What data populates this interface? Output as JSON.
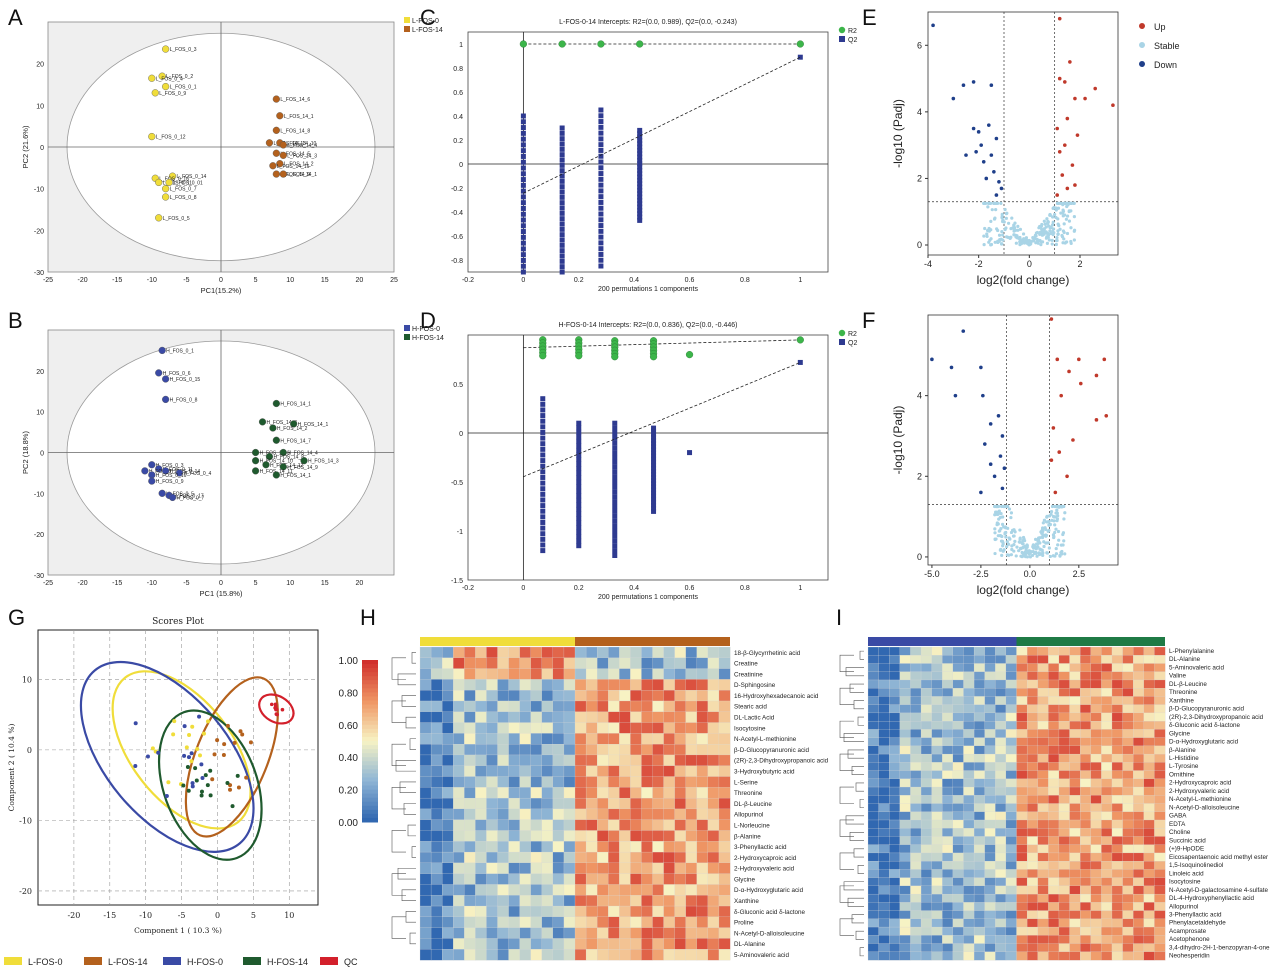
{
  "panel_letters": [
    "A",
    "B",
    "C",
    "D",
    "E",
    "F",
    "G",
    "H",
    "I"
  ],
  "chart_data": [
    {
      "id": "A",
      "type": "scatter",
      "xlabel": "PC1(15.2%)",
      "ylabel": "PC2 (21.6%)",
      "xlim": [
        -25,
        25
      ],
      "ylim": [
        -30,
        30
      ],
      "xticks": [
        "-25",
        "-20",
        "-15",
        "-10",
        "-5",
        "0",
        "5",
        "10",
        "15",
        "20",
        "25"
      ],
      "yticks": [
        "-30",
        "-20",
        "-10",
        "0",
        "10",
        "20"
      ],
      "legend": [
        "L-FOS-0",
        "L-FOS-14"
      ],
      "colors": [
        "#f0dd3a",
        "#b4611d"
      ],
      "series": [
        {
          "name": "L-FOS-0",
          "points": [
            [
              -8,
              23.5,
              "L_FOS_0_3"
            ],
            [
              -8.5,
              17,
              "L_FOS_0_2"
            ],
            [
              -10,
              16.5,
              "L_FOS_0_4"
            ],
            [
              -8,
              14.5,
              "L_FOS_0_1"
            ],
            [
              -9.5,
              13,
              "L_FOS_0_9"
            ],
            [
              -10,
              2.5,
              "L_FOS_0_12"
            ],
            [
              -7,
              -7,
              "L_FOS_0_14"
            ],
            [
              -9.5,
              -7.5,
              "L_FOS_0_16"
            ],
            [
              -9,
              -8.5,
              "L_FOS_0_11"
            ],
            [
              -7.5,
              -8.5,
              "L_FOS_0_01"
            ],
            [
              -8,
              -10,
              "L_FOS_0_7"
            ],
            [
              -8,
              -12,
              "L_FOS_0_8"
            ],
            [
              -9,
              -17,
              "L_FOS_0_5"
            ]
          ]
        },
        {
          "name": "L-FOS-14",
          "points": [
            [
              8,
              11.5,
              "L_FOS_14_6"
            ],
            [
              8.5,
              7.5,
              "L_FOS_14_1"
            ],
            [
              8,
              4,
              "L_FOS_14_8"
            ],
            [
              7,
              1,
              "L_FOS_14_13"
            ],
            [
              8.5,
              1,
              "L_FOS_14_10"
            ],
            [
              9,
              0.5,
              "L_FOS_14_4"
            ],
            [
              8,
              -1.5,
              "L_FOS_14_5"
            ],
            [
              9,
              -2,
              "L_FOS_14_3"
            ],
            [
              8.5,
              -4,
              "L_FOS_14_2"
            ],
            [
              7.5,
              -4.5,
              "L_FOS_14_16"
            ],
            [
              8,
              -6.5,
              "L_FOS_14_9"
            ],
            [
              9,
              -6.5,
              "L_FOS_14_1"
            ]
          ]
        }
      ]
    },
    {
      "id": "B",
      "type": "scatter",
      "xlabel": "PC1 (15.8%)",
      "ylabel": "PC2 (18.8%)",
      "xlim": [
        -25,
        25
      ],
      "ylim": [
        -30,
        30
      ],
      "xticks": [
        "-25",
        "-20",
        "-15",
        "-10",
        "-5",
        "0",
        "5",
        "10",
        "15",
        "20"
      ],
      "yticks": [
        "-30",
        "-20",
        "-10",
        "0",
        "10",
        "20"
      ],
      "legend": [
        "H-FOS-0",
        "H-FOS-14"
      ],
      "colors": [
        "#3a4aa5",
        "#1f5a2e"
      ],
      "series": [
        {
          "name": "H-FOS-0",
          "points": [
            [
              -8.5,
              25,
              "H_FOS_0_1"
            ],
            [
              -9,
              19.5,
              "H_FOS_0_6"
            ],
            [
              -8,
              18,
              "H_FOS_0_15"
            ],
            [
              -8,
              13,
              "H_FOS_0_8"
            ],
            [
              -10,
              -3,
              "H_FOS_0_3"
            ],
            [
              -9,
              -4,
              "H_FOS_0_11"
            ],
            [
              -11,
              -4.5,
              "H_FOS_0_12"
            ],
            [
              -8,
              -4.5,
              "H_FOS_0_14"
            ],
            [
              -6,
              -5,
              "H_FOS_0_4"
            ],
            [
              -10,
              -5.5,
              "H_FOS_0_16"
            ],
            [
              -10,
              -7,
              "H_FOS_0_9"
            ],
            [
              -8.5,
              -10,
              "H_FOS_0_5"
            ],
            [
              -7.5,
              -10.5,
              "H_FOS_0_17"
            ],
            [
              -7,
              -11,
              "H_FOS_0_7"
            ]
          ]
        },
        {
          "name": "H-FOS-14",
          "points": [
            [
              8,
              12,
              "H_FOS_14_1"
            ],
            [
              6,
              7.5,
              "H_FOS_14_3"
            ],
            [
              10.5,
              7,
              "H_FOS_14_1"
            ],
            [
              7.5,
              6,
              "H_FOS_14_2"
            ],
            [
              8,
              3,
              "H_FOS_14_7"
            ],
            [
              5,
              0,
              "H_FOS_14_6"
            ],
            [
              9,
              0,
              "H_FOS_14_4"
            ],
            [
              7,
              -1,
              "H_FOS_14_8"
            ],
            [
              5,
              -2,
              "H_FOS_14_10"
            ],
            [
              12,
              -2,
              "H_FOS_14_3"
            ],
            [
              6.5,
              -3,
              "H_FOS_14_12"
            ],
            [
              9,
              -3.5,
              "H_FOS_14_9"
            ],
            [
              5,
              -4.5,
              "H_FOS_14_11"
            ],
            [
              8,
              -5.5,
              "H_FOS_14_1"
            ]
          ]
        }
      ]
    },
    {
      "id": "C",
      "type": "scatter",
      "title": "L-FOS-0-14 Intercepts: R2=(0.0, 0.989), Q2=(0.0, -0.243)",
      "xlabel": "200 permutations 1 components",
      "xlim": [
        -0.2,
        1.1
      ],
      "ylim": [
        -0.9,
        1.1
      ],
      "xticks": [
        "-0.2",
        "0",
        "0.2",
        "0.4",
        "0.6",
        "0.8",
        "1"
      ],
      "yticks": [
        "-0.8",
        "-0.6",
        "-0.4",
        "-0.2",
        "0",
        "0.2",
        "0.4",
        "0.6",
        "0.8",
        "1"
      ],
      "legend": [
        "R2",
        "Q2"
      ],
      "colors": [
        "#3cb54a",
        "#2e3a90"
      ],
      "R2": {
        "x": [
          0,
          0.14,
          0.28,
          0.42,
          1
        ],
        "y": [
          1,
          1,
          1,
          1,
          1
        ]
      },
      "Q2_columns": [
        {
          "x": 0,
          "ymin": -0.9,
          "ymax": 0.4
        },
        {
          "x": 0.14,
          "ymin": -0.9,
          "ymax": 0.3
        },
        {
          "x": 0.28,
          "ymin": -0.85,
          "ymax": 0.45
        },
        {
          "x": 0.42,
          "ymin": -0.47,
          "ymax": 0.28
        }
      ],
      "Q2_point": {
        "x": 1,
        "y": 0.89
      },
      "Q2_intercept": -0.243
    },
    {
      "id": "D",
      "type": "scatter",
      "title": "H-FOS-0-14 Intercepts: R2=(0.0, 0.836), Q2=(0.0, -0.446)",
      "xlabel": "200 permutations 1 components",
      "xlim": [
        -0.2,
        1.1
      ],
      "ylim": [
        -1.5,
        1
      ],
      "xticks": [
        "-0.2",
        "0",
        "0.2",
        "0.4",
        "0.6",
        "0.8",
        "1"
      ],
      "yticks": [
        "-1.5",
        "-1",
        "-0.5",
        "0",
        "0.5"
      ],
      "legend": [
        "R2",
        "Q2"
      ],
      "colors": [
        "#3cb54a",
        "#2e3a90"
      ],
      "R2": {
        "x": [
          0.07,
          0.2,
          0.33,
          0.47,
          0.6,
          1
        ],
        "y": [
          0.87,
          0.87,
          0.86,
          0.86,
          0.8,
          0.95
        ]
      },
      "Q2_columns": [
        {
          "x": 0.07,
          "ymin": -1.2,
          "ymax": 0.35
        },
        {
          "x": 0.2,
          "ymin": -1.15,
          "ymax": 0.1
        },
        {
          "x": 0.33,
          "ymin": -1.25,
          "ymax": 0.1
        },
        {
          "x": 0.47,
          "ymin": -0.8,
          "ymax": 0.05
        }
      ],
      "Q2_extra": [
        {
          "x": 0.6,
          "y": -0.2
        }
      ],
      "Q2_point": {
        "x": 1,
        "y": 0.72
      },
      "Q2_intercept": -0.446
    },
    {
      "id": "E",
      "type": "scatter",
      "xlabel": "log2(fold change)",
      "ylabel": "-log10 (Padj)",
      "xlim": [
        -4,
        3.5
      ],
      "ylim": [
        -0.3,
        7
      ],
      "xticks": [
        "-4",
        "-2",
        "0",
        "2"
      ],
      "yticks": [
        "0",
        "2",
        "4",
        "6"
      ],
      "legend": [
        "Up",
        "Stable",
        "Down"
      ],
      "colors": [
        "#c0392b",
        "#a9d4e6",
        "#1f3f8a"
      ],
      "thresholds": {
        "x": [
          -1,
          1
        ],
        "y": 1.3
      },
      "down": [
        [
          -3.8,
          6.6
        ],
        [
          -2.6,
          4.8
        ],
        [
          -2.2,
          4.9
        ],
        [
          -3,
          4.4
        ],
        [
          -1.5,
          4.8
        ],
        [
          -2.2,
          3.5
        ],
        [
          -2,
          3.4
        ],
        [
          -1.6,
          3.6
        ],
        [
          -2.5,
          2.7
        ],
        [
          -1.9,
          3.0
        ],
        [
          -1.3,
          3.2
        ],
        [
          -1.8,
          2.5
        ],
        [
          -1.4,
          2.2
        ],
        [
          -1.7,
          2.0
        ],
        [
          -1.2,
          1.9
        ],
        [
          -1.1,
          1.7
        ],
        [
          -1.3,
          1.5
        ],
        [
          -2.1,
          2.8
        ],
        [
          -1.5,
          2.7
        ]
      ],
      "up": [
        [
          1.2,
          6.8
        ],
        [
          1.6,
          5.5
        ],
        [
          1.2,
          5.0
        ],
        [
          1.4,
          4.9
        ],
        [
          2.6,
          4.7
        ],
        [
          1.8,
          4.4
        ],
        [
          3.3,
          4.2
        ],
        [
          2.2,
          4.4
        ],
        [
          1.5,
          3.8
        ],
        [
          1.1,
          3.5
        ],
        [
          1.9,
          3.3
        ],
        [
          1.4,
          3.0
        ],
        [
          1.2,
          2.8
        ],
        [
          1.7,
          2.4
        ],
        [
          1.3,
          2.1
        ],
        [
          1.5,
          1.7
        ],
        [
          1.1,
          1.5
        ],
        [
          1.8,
          1.8
        ]
      ]
    },
    {
      "id": "F",
      "type": "scatter",
      "xlabel": "log2(fold change)",
      "ylabel": "-log10 (Padj)",
      "xlim": [
        -5.2,
        4.5
      ],
      "ylim": [
        -0.2,
        6
      ],
      "xticks": [
        "-5.0",
        "-2.5",
        "0.0",
        "2.5"
      ],
      "yticks": [
        "0",
        "2",
        "4"
      ],
      "legend": [],
      "colors": [
        "#c0392b",
        "#a9d4e6",
        "#1f3f8a"
      ],
      "thresholds": {
        "x": [
          -1.2,
          1
        ],
        "y": 1.3
      },
      "down": [
        [
          -3.4,
          5.6
        ],
        [
          -5,
          4.9
        ],
        [
          -4,
          4.7
        ],
        [
          -2.5,
          4.7
        ],
        [
          -3.8,
          4.0
        ],
        [
          -2.4,
          4.0
        ],
        [
          -1.6,
          3.5
        ],
        [
          -2,
          3.3
        ],
        [
          -1.4,
          3.0
        ],
        [
          -2.3,
          2.8
        ],
        [
          -1.5,
          2.5
        ],
        [
          -2,
          2.3
        ],
        [
          -1.3,
          2.2
        ],
        [
          -1.8,
          2.0
        ],
        [
          -1.4,
          1.7
        ],
        [
          -2.5,
          1.6
        ]
      ],
      "up": [
        [
          1.1,
          5.9
        ],
        [
          1.4,
          4.9
        ],
        [
          2.5,
          4.9
        ],
        [
          3.8,
          4.9
        ],
        [
          2,
          4.6
        ],
        [
          2.6,
          4.3
        ],
        [
          3.4,
          4.5
        ],
        [
          1.6,
          4.0
        ],
        [
          3.9,
          3.5
        ],
        [
          3.4,
          3.4
        ],
        [
          1.2,
          3.2
        ],
        [
          2.2,
          2.9
        ],
        [
          1.5,
          2.6
        ],
        [
          1.1,
          2.4
        ],
        [
          1.9,
          2.0
        ],
        [
          1.3,
          1.6
        ]
      ]
    },
    {
      "id": "G",
      "type": "scatter",
      "title": "Scores Plot",
      "xlabel": "Component 1 ( 10.3 %)",
      "ylabel": "Component 2 ( 10.4 %)",
      "xlim": [
        -25,
        14
      ],
      "ylim": [
        -22,
        17
      ],
      "xticks": [
        "-20",
        "-15",
        "-10",
        "-5",
        "0",
        "5",
        "10"
      ],
      "yticks": [
        "-20",
        "-10",
        "0",
        "10"
      ],
      "legend": [
        "L-FOS-0",
        "L-FOS-14",
        "H-FOS-0",
        "H-FOS-14",
        "QC"
      ],
      "colors": [
        "#f0dd3a",
        "#b4611d",
        "#3a4aa5",
        "#1f5a2e",
        "#d3202b"
      ]
    },
    {
      "id": "H",
      "type": "heatmap",
      "colorbar_ticks": [
        "1.00",
        "0.80",
        "0.60",
        "0.40",
        "0.20",
        "0.00"
      ],
      "group_colors": [
        "#f0dd3a",
        "#b4611d"
      ],
      "rows": [
        "18-β-Glycyrrhetinic acid",
        "Creatine",
        "Creatinine",
        "D-Sphingosine",
        "16-Hydroxyhexadecanoic acid",
        "Stearic acid",
        "DL-Lactic Acid",
        "Isocytosine",
        "N-Acetyl-L-methionine",
        "β-D-Glucopyranuronic acid",
        "(2R)-2,3-Dihydroxypropanoic acid",
        "3-Hydroxybutyric acid",
        "L-Serine",
        "Threonine",
        "DL-β-Leucine",
        "Allopurinol",
        "L-Norleucine",
        "β-Alanine",
        "3-Phenyllactic acid",
        "2-Hydroxycaproic acid",
        "2-Hydroxyvaleric acid",
        "Glycine",
        "D-α-Hydroxyglutaric acid",
        "Xanthine",
        "δ-Gluconic acid δ-lactone",
        "Proline",
        "N-Acetyl-D-alloisoleucine",
        "DL-Alanine",
        "5-Aminovaleric acid"
      ]
    },
    {
      "id": "I",
      "type": "heatmap",
      "group_colors": [
        "#3a4aa5",
        "#1f7a45"
      ],
      "rows": [
        "L-Phenylalanine",
        "DL-Alanine",
        "5-Aminovaleric acid",
        "Valine",
        "DL-β-Leucine",
        "Threonine",
        "Xanthine",
        "β-D-Glucopyranuronic acid",
        "(2R)-2,3-Dihydroxypropanoic acid",
        "δ-Gluconic acid δ-lactone",
        "Glycine",
        "D-α-Hydroxyglutaric acid",
        "β-Alanine",
        "L-Histidine",
        "L-Tyrosine",
        "Ornithine",
        "2-Hydroxycaproic acid",
        "2-Hydroxyvaleric acid",
        "N-Acetyl-L-methionine",
        "N-Acetyl-D-alloisoleucine",
        "GABA",
        "EDTA",
        "Choline",
        "Succinic acid",
        "(+)9-HpODE",
        "Eicosapentaenoic acid methyl ester",
        "1,5-Isoquinolinediol",
        "Linoleic acid",
        "Isocytosine",
        "N-Acetyl-D-galactosamine 4-sulfate",
        "DL-4-Hydroxyphenyllactic acid",
        "Allopurinol",
        "3-Phenyllactic acid",
        "Phenylacetaldehyde",
        "Acamprosate",
        "Acetophenone",
        "3,4-dihydro-2H-1-benzopyran-4-one",
        "Neohesperidin"
      ]
    }
  ]
}
